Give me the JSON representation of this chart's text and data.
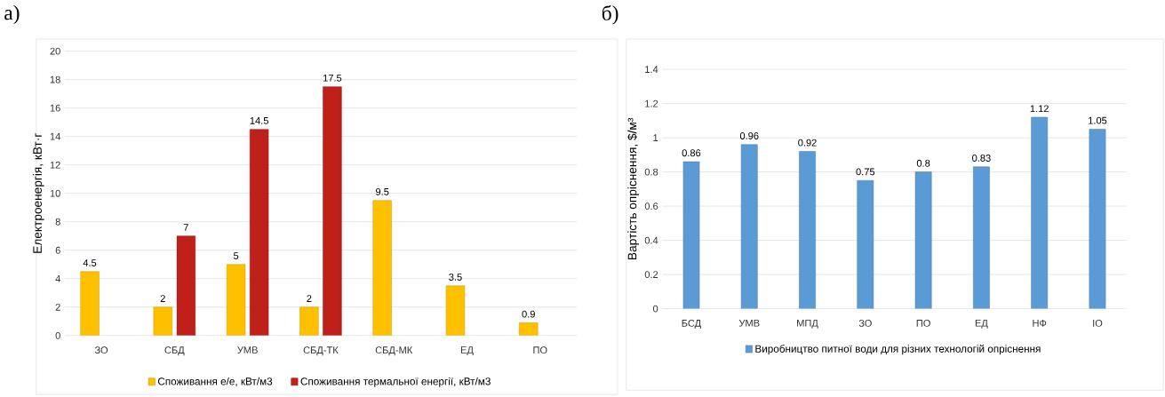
{
  "chart_data": [
    {
      "type": "bar",
      "title": "а)",
      "ylabel": "Електроенергія, кВт·г",
      "categories": [
        "ЗО",
        "СБД",
        "УМВ",
        "СБД-ТК",
        "СБД-МК",
        "ЕД",
        "ПО"
      ],
      "series": [
        {
          "name": "Споживання е/е, кВт/м3",
          "color": "#ffc000",
          "values": [
            4.5,
            2,
            5,
            2,
            9.5,
            3.5,
            0.9
          ]
        },
        {
          "name": "Споживання термальної енергії, кВт/м3",
          "color": "#c0201a",
          "values": [
            null,
            7,
            14.5,
            17.5,
            null,
            null,
            null
          ]
        }
      ],
      "ylim": [
        0,
        20
      ],
      "yticks": [
        0,
        2,
        4,
        6,
        8,
        10,
        12,
        14,
        16,
        18,
        20
      ],
      "grid": "y",
      "legend": "bottom",
      "data_labels": true
    },
    {
      "type": "bar",
      "title": "б)",
      "ylabel": "Вартість опріснення, $/м³",
      "categories": [
        "БСД",
        "УМВ",
        "МПД",
        "ЗО",
        "ПО",
        "ЕД",
        "НФ",
        "ІО"
      ],
      "series": [
        {
          "name": "Виробництво питної води для різних технологій опріснення",
          "color": "#5b9bd5",
          "values": [
            0.86,
            0.96,
            0.92,
            0.75,
            0.8,
            0.83,
            1.12,
            1.05
          ]
        }
      ],
      "ylim": [
        0,
        1.4
      ],
      "yticks": [
        0,
        0.2,
        0.4,
        0.6,
        0.8,
        1,
        1.2,
        1.4
      ],
      "grid": "y",
      "legend": "bottom",
      "data_labels": true
    }
  ]
}
